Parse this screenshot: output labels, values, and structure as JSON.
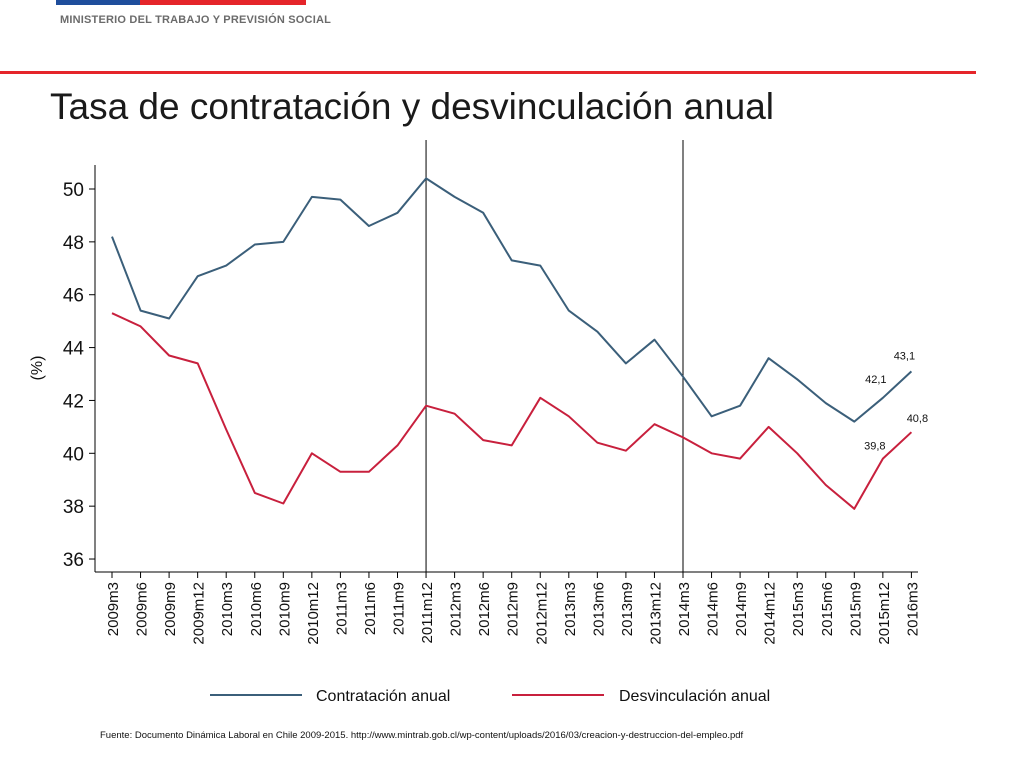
{
  "header": {
    "ministry": "MINISTERIO DEL TRABAJO Y PREVISIÓN SOCIAL",
    "title": "Tasa de contratación y desvinculación anual"
  },
  "footer": {
    "source": "Fuente: Documento Dinámica Laboral en Chile 2009-2015. http://www.mintrab.gob.cl/wp-content/uploads/2016/03/creacion-y-destruccion-del-empleo.pdf"
  },
  "colors": {
    "flag_blue": "#1f4e9c",
    "flag_red": "#e5252a",
    "contratacion": "#3b5f7a",
    "desvinculacion": "#c8203d"
  },
  "chart_data": {
    "type": "line",
    "ylabel": "(%)",
    "xlabel": "",
    "ylim": [
      36,
      51
    ],
    "yticks": [
      36,
      38,
      40,
      42,
      44,
      46,
      48,
      50
    ],
    "grid": false,
    "legend": "bottom",
    "categories": [
      "2009m3",
      "2009m6",
      "2009m9",
      "2009m12",
      "2010m3",
      "2010m6",
      "2010m9",
      "2010m12",
      "2011m3",
      "2011m6",
      "2011m9",
      "2011m12",
      "2012m3",
      "2012m6",
      "2012m9",
      "2012m12",
      "2013m3",
      "2013m6",
      "2013m9",
      "2013m12",
      "2014m3",
      "2014m6",
      "2014m9",
      "2014m12",
      "2015m3",
      "2015m6",
      "2015m9",
      "2015m12",
      "2016m3"
    ],
    "vlines": [
      "2011m12",
      "2014m3"
    ],
    "series": [
      {
        "name": "Contratación anual",
        "color": "#3b5f7a",
        "values": [
          48.2,
          45.4,
          45.1,
          46.7,
          47.1,
          47.9,
          48.0,
          49.7,
          49.6,
          48.6,
          49.1,
          50.4,
          49.7,
          49.1,
          47.3,
          47.1,
          45.4,
          44.6,
          43.4,
          44.3,
          42.9,
          41.4,
          41.8,
          43.6,
          42.8,
          41.9,
          41.2,
          42.1,
          43.1
        ]
      },
      {
        "name": "Desvinculación anual",
        "color": "#c8203d",
        "values": [
          45.3,
          44.8,
          43.7,
          43.4,
          40.9,
          38.5,
          38.1,
          40.0,
          39.3,
          39.3,
          40.3,
          41.8,
          41.5,
          40.5,
          40.3,
          42.1,
          41.4,
          40.4,
          40.1,
          41.1,
          40.6,
          40.0,
          39.8,
          41.0,
          40.0,
          38.8,
          37.9,
          39.8,
          40.8
        ]
      }
    ],
    "annotations": [
      {
        "series": 0,
        "index": 27,
        "text": "42,1"
      },
      {
        "series": 0,
        "index": 28,
        "text": "43,1"
      },
      {
        "series": 1,
        "index": 27,
        "text": "39,8"
      },
      {
        "series": 1,
        "index": 28,
        "text": "40,8"
      }
    ]
  }
}
